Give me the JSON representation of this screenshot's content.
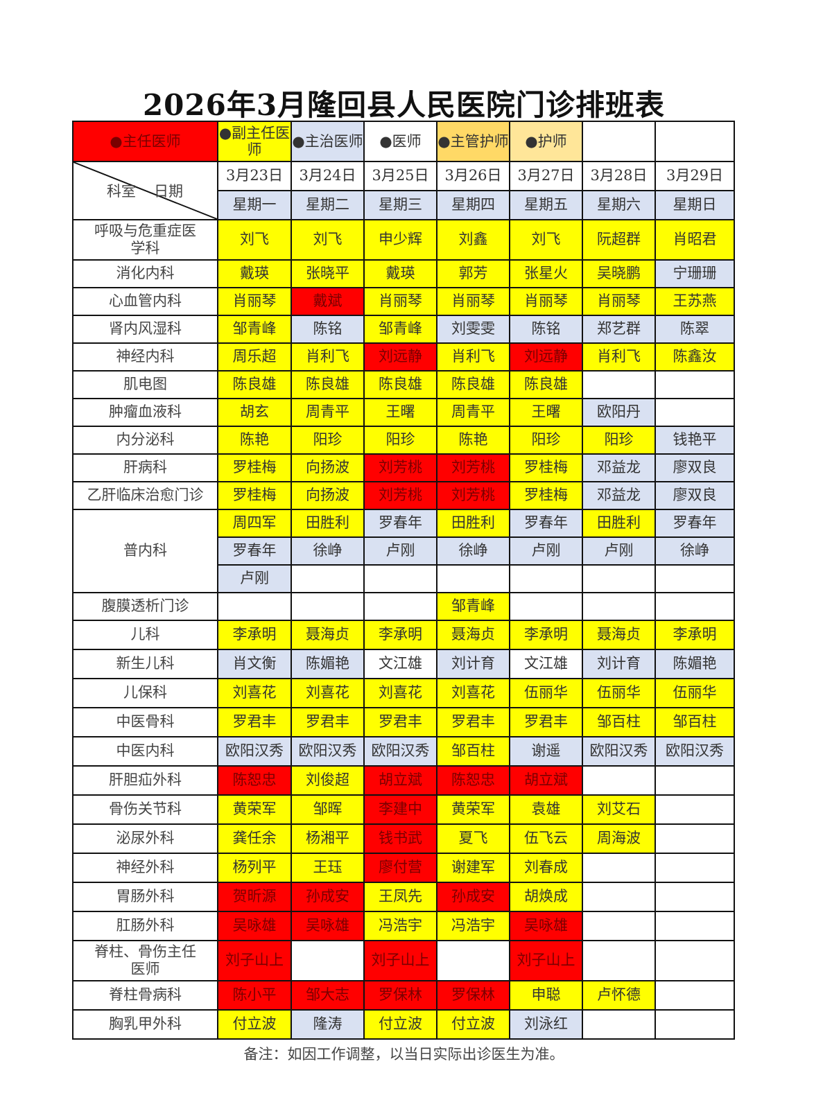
{
  "title": "2026年3月隆回县人民医院门诊排班表",
  "legend": [
    {
      "label": "●主任医师",
      "role": "R"
    },
    {
      "label": "●副主任医师",
      "role": "Y"
    },
    {
      "label": "●主治医师",
      "role": "B"
    },
    {
      "label": "●医师",
      "role": "W"
    },
    {
      "label": "●主管护师",
      "role": "O"
    },
    {
      "label": "●护师",
      "role": "L"
    },
    {
      "label": "",
      "role": "W"
    },
    {
      "label": "",
      "role": "W"
    }
  ],
  "role_colors": {
    "R": "#ff0000",
    "Y": "#ffff00",
    "B": "#d9e1f2",
    "W": "#ffffff",
    "O": "#ffd966",
    "L": "#ffe699"
  },
  "corner": {
    "dept_label": "科室",
    "date_label": "日期"
  },
  "dates": [
    "3月23日",
    "3月24日",
    "3月25日",
    "3月26日",
    "3月27日",
    "3月28日",
    "3月29日"
  ],
  "weekdays": [
    "星期一",
    "星期二",
    "星期三",
    "星期四",
    "星期五",
    "星期六",
    "星期日"
  ],
  "departments": [
    {
      "name": "呼吸与危重症医学科",
      "rows": [
        [
          [
            "刘飞",
            "Y"
          ],
          [
            "刘飞",
            "Y"
          ],
          [
            "申少辉",
            "Y"
          ],
          [
            "刘鑫",
            "Y"
          ],
          [
            "刘飞",
            "Y"
          ],
          [
            "阮超群",
            "Y"
          ],
          [
            "肖昭君",
            "Y"
          ]
        ]
      ]
    },
    {
      "name": "消化内科",
      "rows": [
        [
          [
            "戴瑛",
            "Y"
          ],
          [
            "张晓平",
            "Y"
          ],
          [
            "戴瑛",
            "Y"
          ],
          [
            "郭芳",
            "Y"
          ],
          [
            "张星火",
            "Y"
          ],
          [
            "吴晓鹏",
            "Y"
          ],
          [
            "宁珊珊",
            "B"
          ]
        ]
      ]
    },
    {
      "name": "心血管内科",
      "rows": [
        [
          [
            "肖丽琴",
            "Y"
          ],
          [
            "戴斌",
            "R"
          ],
          [
            "肖丽琴",
            "Y"
          ],
          [
            "肖丽琴",
            "Y"
          ],
          [
            "肖丽琴",
            "Y"
          ],
          [
            "肖丽琴",
            "Y"
          ],
          [
            "王苏燕",
            "Y"
          ]
        ]
      ]
    },
    {
      "name": "肾内风湿科",
      "rows": [
        [
          [
            "邹青峰",
            "Y"
          ],
          [
            "陈铭",
            "B"
          ],
          [
            "邹青峰",
            "Y"
          ],
          [
            "刘雯雯",
            "B"
          ],
          [
            "陈铭",
            "B"
          ],
          [
            "郑艺群",
            "B"
          ],
          [
            "陈翠",
            "B"
          ]
        ]
      ]
    },
    {
      "name": "神经内科",
      "rows": [
        [
          [
            "周乐超",
            "Y"
          ],
          [
            "肖利飞",
            "Y"
          ],
          [
            "刘远静",
            "R"
          ],
          [
            "肖利飞",
            "Y"
          ],
          [
            "刘远静",
            "R"
          ],
          [
            "肖利飞",
            "Y"
          ],
          [
            "陈鑫汝",
            "Y"
          ]
        ]
      ]
    },
    {
      "name": "肌电图",
      "rows": [
        [
          [
            "陈良雄",
            "Y"
          ],
          [
            "陈良雄",
            "Y"
          ],
          [
            "陈良雄",
            "Y"
          ],
          [
            "陈良雄",
            "Y"
          ],
          [
            "陈良雄",
            "Y"
          ],
          [
            "",
            "W"
          ],
          [
            "",
            "W"
          ]
        ]
      ]
    },
    {
      "name": "肿瘤血液科",
      "rows": [
        [
          [
            "胡玄",
            "Y"
          ],
          [
            "周青平",
            "Y"
          ],
          [
            "王曙",
            "Y"
          ],
          [
            "周青平",
            "Y"
          ],
          [
            "王曙",
            "Y"
          ],
          [
            "欧阳丹",
            "B"
          ],
          [
            "",
            "W"
          ]
        ]
      ]
    },
    {
      "name": "内分泌科",
      "rows": [
        [
          [
            "陈艳",
            "Y"
          ],
          [
            "阳珍",
            "Y"
          ],
          [
            "阳珍",
            "Y"
          ],
          [
            "陈艳",
            "Y"
          ],
          [
            "阳珍",
            "Y"
          ],
          [
            "阳珍",
            "Y"
          ],
          [
            "钱艳平",
            "B"
          ]
        ]
      ]
    },
    {
      "name": "肝病科",
      "rows": [
        [
          [
            "罗桂梅",
            "Y"
          ],
          [
            "向扬波",
            "Y"
          ],
          [
            "刘芳桃",
            "R"
          ],
          [
            "刘芳桃",
            "R"
          ],
          [
            "罗桂梅",
            "Y"
          ],
          [
            "邓益龙",
            "B"
          ],
          [
            "廖双良",
            "B"
          ]
        ]
      ]
    },
    {
      "name": "乙肝临床治愈门诊",
      "rows": [
        [
          [
            "罗桂梅",
            "Y"
          ],
          [
            "向扬波",
            "Y"
          ],
          [
            "刘芳桃",
            "R"
          ],
          [
            "刘芳桃",
            "R"
          ],
          [
            "罗桂梅",
            "Y"
          ],
          [
            "邓益龙",
            "B"
          ],
          [
            "廖双良",
            "B"
          ]
        ]
      ]
    },
    {
      "name": "普内科",
      "rows": [
        [
          [
            "周四军",
            "Y"
          ],
          [
            "田胜利",
            "Y"
          ],
          [
            "罗春年",
            "B"
          ],
          [
            "田胜利",
            "Y"
          ],
          [
            "罗春年",
            "B"
          ],
          [
            "田胜利",
            "Y"
          ],
          [
            "罗春年",
            "B"
          ]
        ],
        [
          [
            "罗春年",
            "B"
          ],
          [
            "徐峥",
            "B"
          ],
          [
            "卢刚",
            "B"
          ],
          [
            "徐峥",
            "B"
          ],
          [
            "卢刚",
            "B"
          ],
          [
            "卢刚",
            "B"
          ],
          [
            "徐峥",
            "B"
          ]
        ],
        [
          [
            "卢刚",
            "B"
          ],
          [
            "",
            "W"
          ],
          [
            "",
            "W"
          ],
          [
            "",
            "W"
          ],
          [
            "",
            "W"
          ],
          [
            "",
            "W"
          ],
          [
            "",
            "W"
          ]
        ]
      ]
    },
    {
      "name": "腹膜透析门诊",
      "rows": [
        [
          [
            "",
            "W"
          ],
          [
            "",
            "W"
          ],
          [
            "",
            "W"
          ],
          [
            "邹青峰",
            "Y"
          ],
          [
            "",
            "W"
          ],
          [
            "",
            "W"
          ],
          [
            "",
            "W"
          ]
        ]
      ]
    },
    {
      "name": "儿科",
      "rows": [
        [
          [
            "李承明",
            "Y"
          ],
          [
            "聂海贞",
            "Y"
          ],
          [
            "李承明",
            "Y"
          ],
          [
            "聂海贞",
            "Y"
          ],
          [
            "李承明",
            "Y"
          ],
          [
            "聂海贞",
            "Y"
          ],
          [
            "李承明",
            "Y"
          ]
        ]
      ]
    },
    {
      "name": "新生儿科",
      "rows": [
        [
          [
            "肖文衡",
            "B"
          ],
          [
            "陈媚艳",
            "B"
          ],
          [
            "文江雄",
            "W"
          ],
          [
            "刘计育",
            "B"
          ],
          [
            "文江雄",
            "W"
          ],
          [
            "刘计育",
            "B"
          ],
          [
            "陈媚艳",
            "B"
          ]
        ]
      ]
    },
    {
      "name": "儿保科",
      "rows": [
        [
          [
            "刘喜花",
            "Y"
          ],
          [
            "刘喜花",
            "Y"
          ],
          [
            "刘喜花",
            "Y"
          ],
          [
            "刘喜花",
            "Y"
          ],
          [
            "伍丽华",
            "Y"
          ],
          [
            "伍丽华",
            "Y"
          ],
          [
            "伍丽华",
            "Y"
          ]
        ]
      ]
    },
    {
      "name": "中医骨科",
      "rows": [
        [
          [
            "罗君丰",
            "Y"
          ],
          [
            "罗君丰",
            "Y"
          ],
          [
            "罗君丰",
            "Y"
          ],
          [
            "罗君丰",
            "Y"
          ],
          [
            "罗君丰",
            "Y"
          ],
          [
            "邹百柱",
            "Y"
          ],
          [
            "邹百柱",
            "Y"
          ]
        ]
      ]
    },
    {
      "name": "中医内科",
      "rows": [
        [
          [
            "欧阳汉秀",
            "B"
          ],
          [
            "欧阳汉秀",
            "B"
          ],
          [
            "欧阳汉秀",
            "B"
          ],
          [
            "邹百柱",
            "Y"
          ],
          [
            "谢遥",
            "B"
          ],
          [
            "欧阳汉秀",
            "B"
          ],
          [
            "欧阳汉秀",
            "B"
          ]
        ]
      ]
    },
    {
      "name": "肝胆疝外科",
      "rows": [
        [
          [
            "陈恕忠",
            "R"
          ],
          [
            "刘俊超",
            "Y"
          ],
          [
            "胡立斌",
            "R"
          ],
          [
            "陈恕忠",
            "R"
          ],
          [
            "胡立斌",
            "R"
          ],
          [
            "",
            "W"
          ],
          [
            "",
            "W"
          ]
        ]
      ]
    },
    {
      "name": "骨伤关节科",
      "rows": [
        [
          [
            "黄荣军",
            "Y"
          ],
          [
            "邹晖",
            "Y"
          ],
          [
            "李建中",
            "R"
          ],
          [
            "黄荣军",
            "Y"
          ],
          [
            "袁雄",
            "Y"
          ],
          [
            "刘艾石",
            "Y"
          ],
          [
            "",
            "W"
          ]
        ]
      ]
    },
    {
      "name": "泌尿外科",
      "rows": [
        [
          [
            "龚任余",
            "Y"
          ],
          [
            "杨湘平",
            "Y"
          ],
          [
            "钱书武",
            "R"
          ],
          [
            "夏飞",
            "Y"
          ],
          [
            "伍飞云",
            "Y"
          ],
          [
            "周海波",
            "Y"
          ],
          [
            "",
            "W"
          ]
        ]
      ]
    },
    {
      "name": "神经外科",
      "rows": [
        [
          [
            "杨列平",
            "Y"
          ],
          [
            "王珏",
            "Y"
          ],
          [
            "廖付营",
            "R"
          ],
          [
            "谢建军",
            "Y"
          ],
          [
            "刘春成",
            "Y"
          ],
          [
            "",
            "W"
          ],
          [
            "",
            "W"
          ]
        ]
      ]
    },
    {
      "name": "胃肠外科",
      "rows": [
        [
          [
            "贺昕源",
            "R"
          ],
          [
            "孙成安",
            "R"
          ],
          [
            "王凤先",
            "Y"
          ],
          [
            "孙成安",
            "R"
          ],
          [
            "胡焕成",
            "Y"
          ],
          [
            "",
            "W"
          ],
          [
            "",
            "W"
          ]
        ]
      ]
    },
    {
      "name": "肛肠外科",
      "rows": [
        [
          [
            "吴咏雄",
            "R"
          ],
          [
            "吴咏雄",
            "R"
          ],
          [
            "冯浩宇",
            "Y"
          ],
          [
            "冯浩宇",
            "Y"
          ],
          [
            "吴咏雄",
            "R"
          ],
          [
            "",
            "W"
          ],
          [
            "",
            "W"
          ]
        ]
      ]
    },
    {
      "name": "脊柱、骨伤主任医师",
      "rows": [
        [
          [
            "刘子山上",
            "R"
          ],
          [
            "",
            "W"
          ],
          [
            "刘子山上",
            "R"
          ],
          [
            "",
            "W"
          ],
          [
            "刘子山上",
            "R"
          ],
          [
            "",
            "W"
          ],
          [
            "",
            "W"
          ]
        ]
      ]
    },
    {
      "name": "脊柱骨病科",
      "rows": [
        [
          [
            "陈小平",
            "R"
          ],
          [
            "邹大志",
            "R"
          ],
          [
            "罗保林",
            "R"
          ],
          [
            "罗保林",
            "R"
          ],
          [
            "申聪",
            "Y"
          ],
          [
            "卢怀德",
            "Y"
          ],
          [
            "",
            "W"
          ]
        ]
      ]
    },
    {
      "name": "胸乳甲外科",
      "rows": [
        [
          [
            "付立波",
            "Y"
          ],
          [
            "隆涛",
            "B"
          ],
          [
            "付立波",
            "Y"
          ],
          [
            "付立波",
            "Y"
          ],
          [
            "刘泳红",
            "B"
          ],
          [
            "",
            "W"
          ],
          [
            "",
            "W"
          ]
        ]
      ]
    }
  ],
  "note": "备注：如因工作调整，以当日实际出诊医生为准。"
}
